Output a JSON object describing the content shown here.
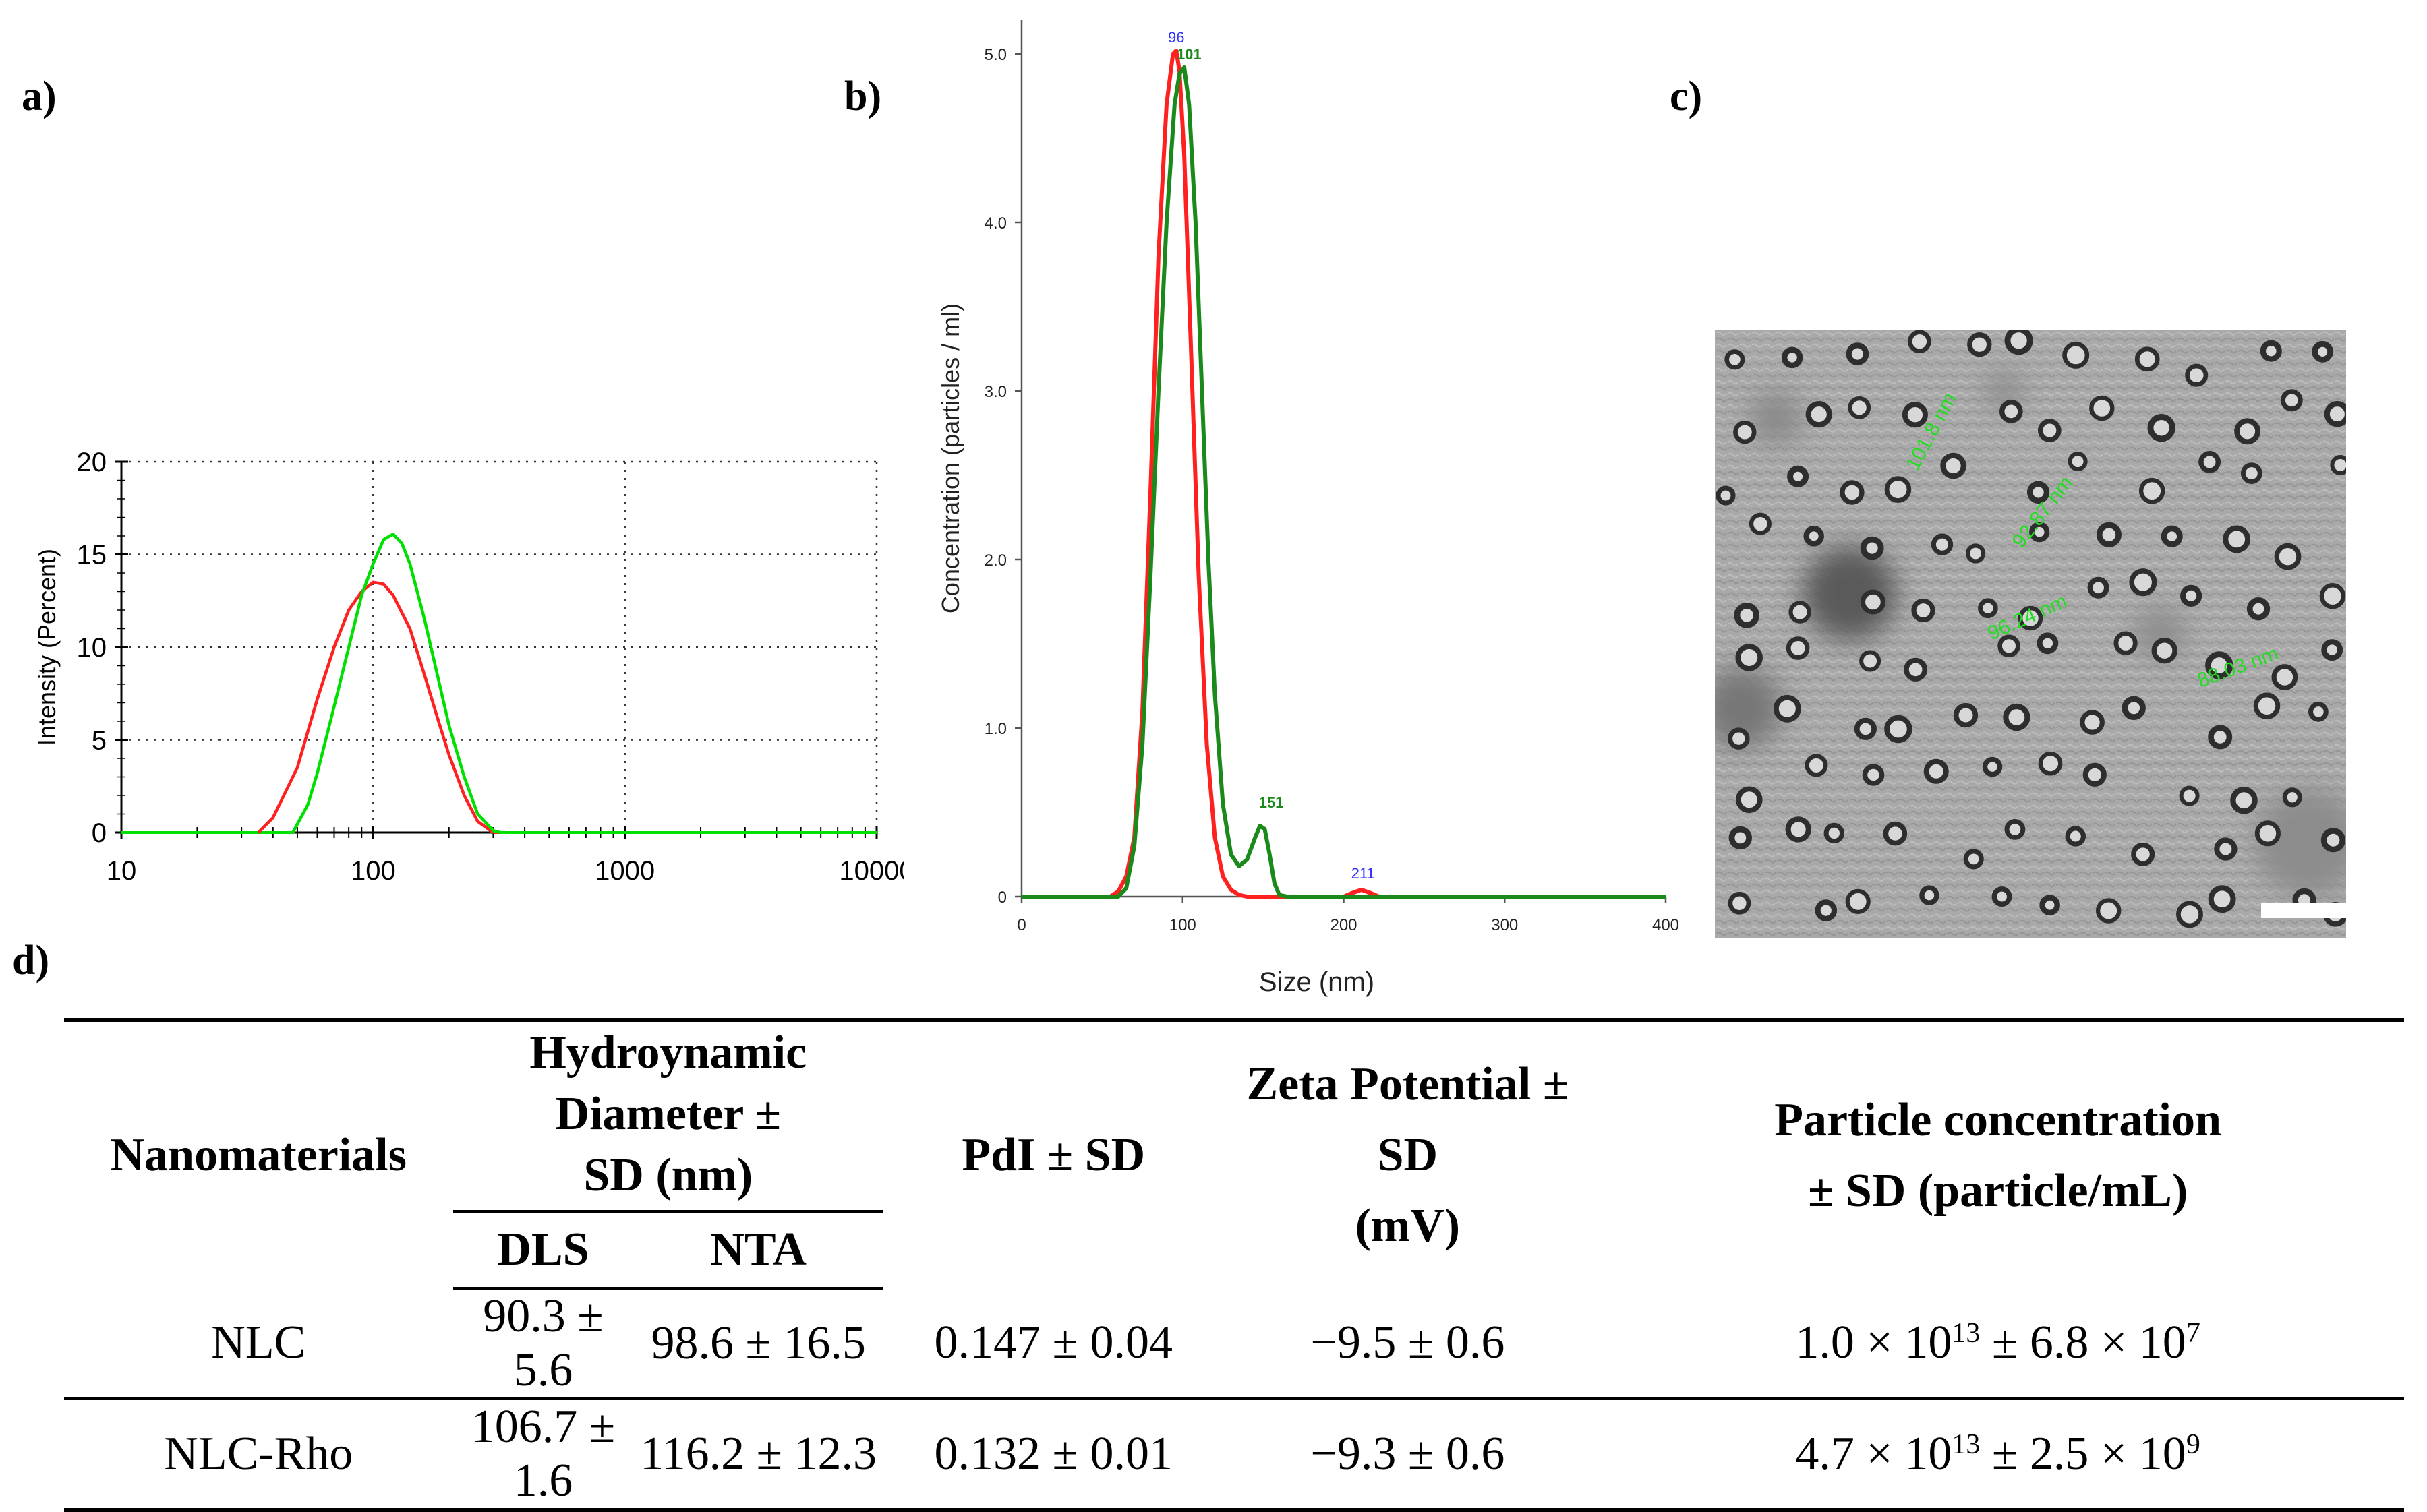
{
  "panel_labels": {
    "a": "a)",
    "b": "b)",
    "c": "c)",
    "d": "d)"
  },
  "chart_data": [
    {
      "type": "line",
      "panel": "a",
      "title": "",
      "xlabel": "",
      "ylabel": "Intensity (Percent)",
      "xscale": "log",
      "xlim": [
        10,
        10000
      ],
      "ylim": [
        0,
        20
      ],
      "xticks": [
        "10",
        "100",
        "1000",
        "10000"
      ],
      "yticks": [
        "0",
        "5",
        "10",
        "15",
        "20"
      ],
      "grid": true,
      "series": [
        {
          "name": "red",
          "color": "#ff2020",
          "x": [
            35,
            40,
            50,
            60,
            70,
            80,
            90,
            100,
            110,
            120,
            140,
            160,
            180,
            200,
            230,
            260,
            300
          ],
          "y": [
            0,
            0.8,
            3.5,
            7.2,
            10.0,
            12.0,
            13.0,
            13.5,
            13.4,
            12.8,
            11.0,
            8.5,
            6.2,
            4.2,
            2.0,
            0.6,
            0
          ]
        },
        {
          "name": "green",
          "color": "#00e000",
          "x": [
            48,
            55,
            60,
            70,
            80,
            90,
            100,
            110,
            120,
            130,
            140,
            160,
            180,
            200,
            230,
            260,
            300,
            320
          ],
          "y": [
            0,
            1.5,
            3.2,
            6.8,
            10.0,
            12.8,
            14.5,
            15.8,
            16.1,
            15.6,
            14.5,
            11.5,
            8.5,
            5.8,
            3.0,
            1.0,
            0.1,
            0
          ]
        }
      ]
    },
    {
      "type": "line",
      "panel": "b",
      "title": "",
      "xlabel": "Size (nm)",
      "ylabel": "Concentration (particles / ml)",
      "xlim": [
        0,
        400
      ],
      "ylim": [
        0,
        5.2
      ],
      "xticks": [
        "0",
        "100",
        "200",
        "300",
        "400"
      ],
      "yticks": [
        "0",
        "1.0",
        "2.0",
        "3.0",
        "4.0",
        "5.0"
      ],
      "grid": false,
      "peak_labels": [
        {
          "text": "96",
          "x": 96,
          "y": 5.02,
          "color": "#3030ff"
        },
        {
          "text": "101",
          "x": 104,
          "y": 4.92,
          "color": "#1a8a1a"
        },
        {
          "text": "151",
          "x": 155,
          "y": 0.48,
          "color": "#1a8a1a"
        },
        {
          "text": "211",
          "x": 212,
          "y": 0.06,
          "color": "#3030ff"
        }
      ],
      "series": [
        {
          "name": "red",
          "color": "#ff2020",
          "x": [
            0,
            55,
            60,
            65,
            70,
            75,
            80,
            85,
            90,
            94,
            96,
            98,
            101,
            105,
            110,
            115,
            120,
            125,
            130,
            135,
            140,
            200,
            205,
            211,
            217,
            222,
            400
          ],
          "y": [
            0,
            0,
            0.03,
            0.12,
            0.35,
            1.1,
            2.4,
            3.8,
            4.7,
            5.0,
            5.02,
            4.9,
            4.4,
            3.3,
            1.9,
            0.9,
            0.35,
            0.12,
            0.04,
            0.01,
            0,
            0,
            0.02,
            0.04,
            0.02,
            0,
            0
          ]
        },
        {
          "name": "green",
          "color": "#1a8a1a",
          "x": [
            0,
            60,
            65,
            70,
            75,
            80,
            85,
            90,
            95,
            98,
            101,
            104,
            108,
            112,
            116,
            120,
            125,
            130,
            135,
            140,
            145,
            148,
            151,
            154,
            157,
            160,
            165,
            400
          ],
          "y": [
            0,
            0,
            0.05,
            0.3,
            0.9,
            1.9,
            3.0,
            4.0,
            4.7,
            4.88,
            4.92,
            4.7,
            4.0,
            3.0,
            2.0,
            1.2,
            0.55,
            0.25,
            0.18,
            0.22,
            0.35,
            0.42,
            0.4,
            0.25,
            0.08,
            0.01,
            0,
            0
          ]
        }
      ]
    }
  ],
  "tem": {
    "labels": [
      {
        "text": "101.8 nm"
      },
      {
        "text": "92.87 nm"
      },
      {
        "text": "96.24 nm"
      },
      {
        "text": "88.03 nm"
      }
    ]
  },
  "table": {
    "headers": {
      "nanomaterials": "Nanomaterials",
      "hydro_line1": "Hydroynamic Diameter ±",
      "hydro_line2": "SD (nm)",
      "dls": "DLS",
      "nta": "NTA",
      "pdi": "PdI ± SD",
      "zeta_line1": "Zeta Potential ± SD",
      "zeta_line2": "(mV)",
      "conc_line1": "Particle concentration",
      "conc_line2": "± SD (particle/mL)"
    },
    "rows": [
      {
        "name": "NLC",
        "dls": "90.3 ± 5.6",
        "nta": "98.6 ± 16.5",
        "pdi": "0.147 ± 0.04",
        "zeta": "−9.5 ± 0.6",
        "conc_a": "1.0 × 10",
        "conc_a_exp": "13",
        "conc_b": " ± 6.8 × 10",
        "conc_b_exp": "7"
      },
      {
        "name": "NLC-Rho",
        "dls": "106.7 ± 1.6",
        "nta": "116.2 ± 12.3",
        "pdi": "0.132 ± 0.01",
        "zeta": "−9.3 ± 0.6",
        "conc_a": "4.7 × 10",
        "conc_a_exp": "13",
        "conc_b": " ± 2.5 × 10",
        "conc_b_exp": "9"
      }
    ]
  }
}
